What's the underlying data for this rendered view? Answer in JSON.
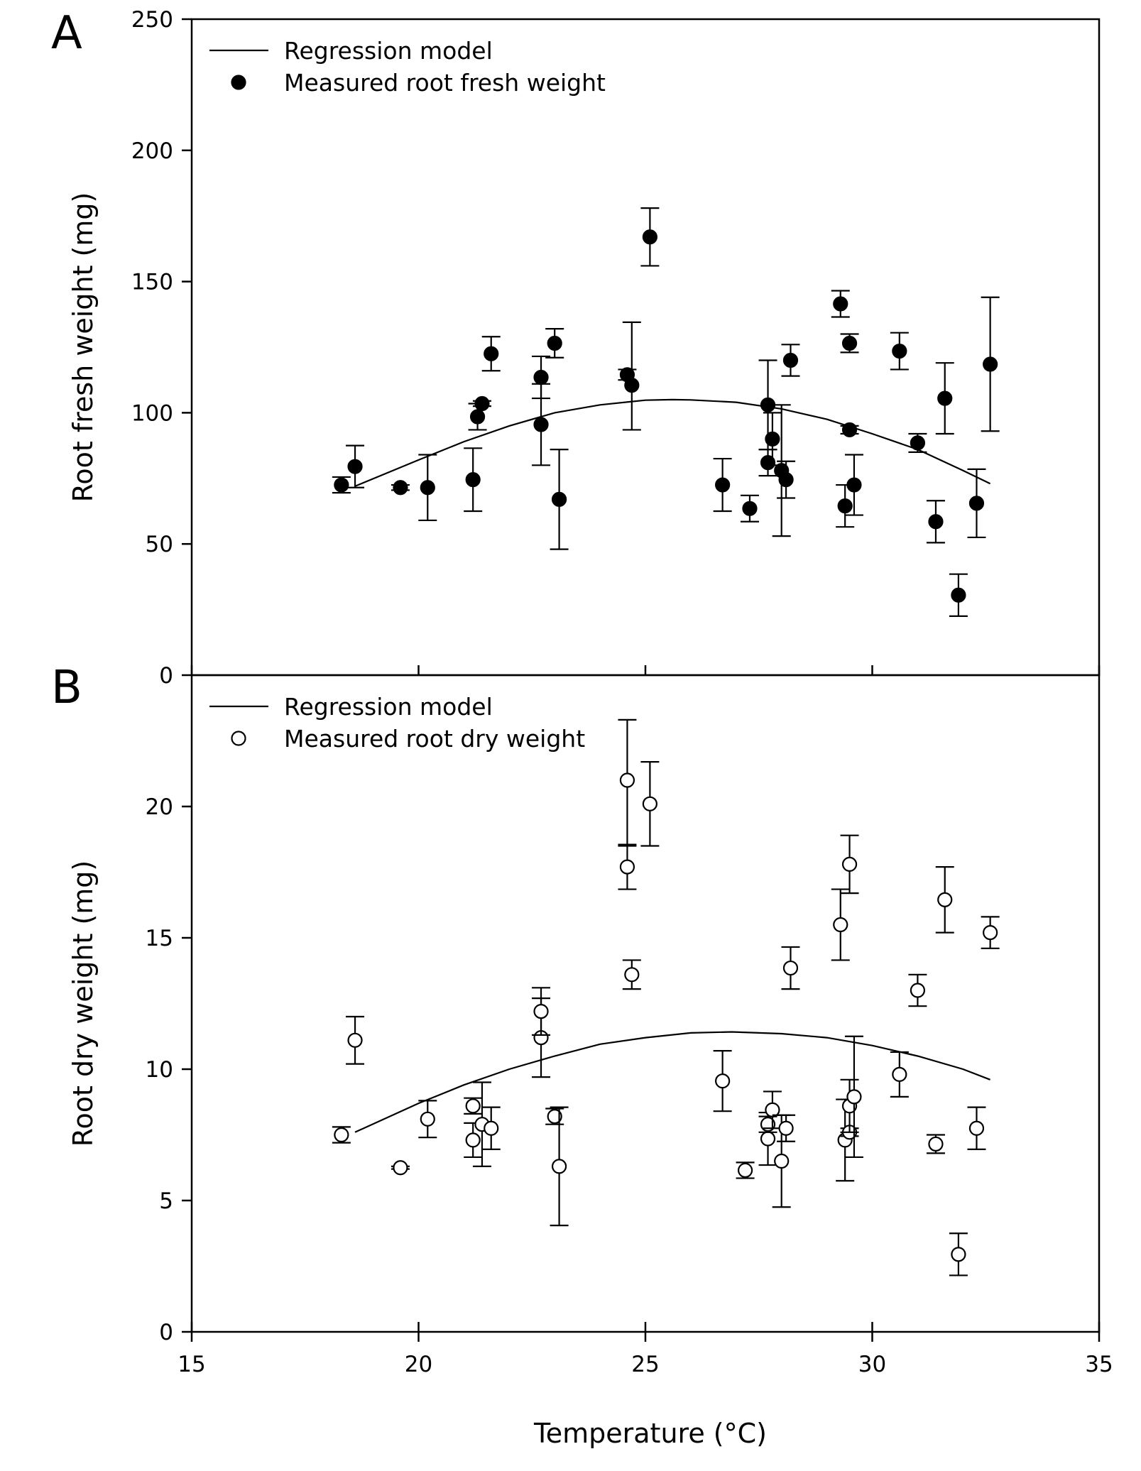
{
  "chart_data": [
    {
      "type": "scatter",
      "panel_label": "A",
      "title": "",
      "xlabel": "Temperature (°C)",
      "ylabel": "Root fresh weight (mg)",
      "xlim": [
        15,
        35
      ],
      "ylim": [
        0,
        250
      ],
      "x_ticks": [
        15,
        20,
        25,
        30,
        35
      ],
      "y_ticks": [
        0,
        50,
        100,
        150,
        200,
        250
      ],
      "grid": false,
      "legend_position": "top-left",
      "legend": [
        {
          "label": "Regression model",
          "marker": "line"
        },
        {
          "label": "Measured root fresh weight",
          "marker": "filled-circle"
        }
      ],
      "regression_model": {
        "x": [
          18.6,
          20,
          21,
          22,
          23,
          24,
          25,
          25.6,
          26,
          27,
          28,
          29,
          30,
          31,
          32,
          32.6
        ],
        "y": [
          72,
          82,
          89,
          95,
          100,
          103,
          104.8,
          105,
          104.9,
          104,
          101.5,
          97.5,
          92,
          86,
          78,
          73
        ]
      },
      "points": [
        {
          "x": 18.3,
          "y": 72.5,
          "err_low": 3,
          "err_high": 3
        },
        {
          "x": 18.6,
          "y": 79.5,
          "err_low": 8,
          "err_high": 8
        },
        {
          "x": 19.6,
          "y": 71.5,
          "err_low": 1,
          "err_high": 1
        },
        {
          "x": 20.2,
          "y": 71.5,
          "err_low": 12.5,
          "err_high": 12.5
        },
        {
          "x": 21.2,
          "y": 74.5,
          "err_low": 12,
          "err_high": 12
        },
        {
          "x": 21.3,
          "y": 98.5,
          "err_low": 5,
          "err_high": 5
        },
        {
          "x": 21.4,
          "y": 103.5,
          "err_low": 1,
          "err_high": 1
        },
        {
          "x": 21.6,
          "y": 122.5,
          "err_low": 6.5,
          "err_high": 6.5
        },
        {
          "x": 22.7,
          "y": 95.5,
          "err_low": 15.5,
          "err_high": 15.5
        },
        {
          "x": 22.7,
          "y": 113.5,
          "err_low": 8,
          "err_high": 8
        },
        {
          "x": 23.0,
          "y": 126.5,
          "err_low": 5.5,
          "err_high": 5.5
        },
        {
          "x": 23.1,
          "y": 67,
          "err_low": 19,
          "err_high": 19
        },
        {
          "x": 24.6,
          "y": 114.5,
          "err_low": 2,
          "err_high": 2
        },
        {
          "x": 24.7,
          "y": 110.5,
          "err_low": 17,
          "err_high": 24
        },
        {
          "x": 25.1,
          "y": 167,
          "err_low": 11,
          "err_high": 11
        },
        {
          "x": 26.7,
          "y": 72.5,
          "err_low": 10,
          "err_high": 10
        },
        {
          "x": 27.3,
          "y": 63.5,
          "err_low": 5,
          "err_high": 5
        },
        {
          "x": 27.7,
          "y": 103,
          "err_low": 17,
          "err_high": 17
        },
        {
          "x": 27.7,
          "y": 81,
          "err_low": 5,
          "err_high": 5
        },
        {
          "x": 27.8,
          "y": 90,
          "err_low": 10,
          "err_high": 10
        },
        {
          "x": 28.0,
          "y": 78,
          "err_low": 25,
          "err_high": 25
        },
        {
          "x": 28.1,
          "y": 74.5,
          "err_low": 7,
          "err_high": 7
        },
        {
          "x": 28.2,
          "y": 120,
          "err_low": 6,
          "err_high": 6
        },
        {
          "x": 29.3,
          "y": 141.5,
          "err_low": 5,
          "err_high": 5
        },
        {
          "x": 29.4,
          "y": 64.5,
          "err_low": 8,
          "err_high": 8
        },
        {
          "x": 29.5,
          "y": 126.5,
          "err_low": 3.5,
          "err_high": 3.5
        },
        {
          "x": 29.5,
          "y": 93.5,
          "err_low": 1.5,
          "err_high": 1.5
        },
        {
          "x": 29.6,
          "y": 72.5,
          "err_low": 11.5,
          "err_high": 11.5
        },
        {
          "x": 30.6,
          "y": 123.5,
          "err_low": 7,
          "err_high": 7
        },
        {
          "x": 31.0,
          "y": 88.5,
          "err_low": 3.5,
          "err_high": 3.5
        },
        {
          "x": 31.4,
          "y": 58.5,
          "err_low": 8,
          "err_high": 8
        },
        {
          "x": 31.6,
          "y": 105.5,
          "err_low": 13.5,
          "err_high": 13.5
        },
        {
          "x": 31.9,
          "y": 30.5,
          "err_low": 8,
          "err_high": 8
        },
        {
          "x": 32.3,
          "y": 65.5,
          "err_low": 13,
          "err_high": 13
        },
        {
          "x": 32.6,
          "y": 118.5,
          "err_low": 25.5,
          "err_high": 25.5
        }
      ]
    },
    {
      "type": "scatter",
      "panel_label": "B",
      "title": "",
      "xlabel": "Temperature (°C)",
      "ylabel": "Root dry weight (mg)",
      "xlim": [
        15,
        35
      ],
      "ylim": [
        0,
        25
      ],
      "x_ticks": [
        15,
        20,
        25,
        30,
        35
      ],
      "y_ticks": [
        0,
        5,
        10,
        15,
        20
      ],
      "grid": false,
      "legend_position": "top-left",
      "legend": [
        {
          "label": "Regression model",
          "marker": "line"
        },
        {
          "label": "Measured root dry weight",
          "marker": "open-circle"
        }
      ],
      "regression_model": {
        "x": [
          18.6,
          20,
          21,
          22,
          23,
          24,
          25,
          26,
          26.9,
          28,
          29,
          30,
          31,
          32,
          32.6
        ],
        "y": [
          7.6,
          8.7,
          9.4,
          10.0,
          10.5,
          10.95,
          11.2,
          11.38,
          11.42,
          11.35,
          11.2,
          10.9,
          10.5,
          10.0,
          9.6
        ]
      },
      "points": [
        {
          "x": 18.3,
          "y": 7.5,
          "err_low": 0.3,
          "err_high": 0.3
        },
        {
          "x": 18.6,
          "y": 11.1,
          "err_low": 0.9,
          "err_high": 0.9
        },
        {
          "x": 19.6,
          "y": 6.25,
          "err_low": 0.05,
          "err_high": 0.05
        },
        {
          "x": 20.2,
          "y": 8.1,
          "err_low": 0.7,
          "err_high": 0.7
        },
        {
          "x": 21.2,
          "y": 7.3,
          "err_low": 0.65,
          "err_high": 0.65
        },
        {
          "x": 21.2,
          "y": 8.6,
          "err_low": 0.3,
          "err_high": 0.3
        },
        {
          "x": 21.4,
          "y": 7.9,
          "err_low": 1.6,
          "err_high": 1.6
        },
        {
          "x": 21.6,
          "y": 7.75,
          "err_low": 0.8,
          "err_high": 0.8
        },
        {
          "x": 22.7,
          "y": 11.2,
          "err_low": 1.5,
          "err_high": 1.5
        },
        {
          "x": 22.7,
          "y": 12.2,
          "err_low": 0.9,
          "err_high": 0.9
        },
        {
          "x": 23.0,
          "y": 8.2,
          "err_low": 0.3,
          "err_high": 0.3
        },
        {
          "x": 23.1,
          "y": 6.3,
          "err_low": 2.25,
          "err_high": 2.25
        },
        {
          "x": 24.6,
          "y": 17.7,
          "err_low": 0.85,
          "err_high": 0.85
        },
        {
          "x": 24.6,
          "y": 21.0,
          "err_low": 2.5,
          "err_high": 2.3
        },
        {
          "x": 24.7,
          "y": 13.6,
          "err_low": 0.55,
          "err_high": 0.55
        },
        {
          "x": 25.1,
          "y": 20.1,
          "err_low": 1.6,
          "err_high": 1.6
        },
        {
          "x": 26.7,
          "y": 9.55,
          "err_low": 1.15,
          "err_high": 1.15
        },
        {
          "x": 27.2,
          "y": 6.15,
          "err_low": 0.3,
          "err_high": 0.3
        },
        {
          "x": 27.7,
          "y": 7.35,
          "err_low": 1.0,
          "err_high": 1.0
        },
        {
          "x": 27.7,
          "y": 7.9,
          "err_low": 0.3,
          "err_high": 0.3
        },
        {
          "x": 27.8,
          "y": 8.45,
          "err_low": 0.7,
          "err_high": 0.7
        },
        {
          "x": 28.0,
          "y": 6.5,
          "err_low": 1.75,
          "err_high": 1.75
        },
        {
          "x": 28.1,
          "y": 7.75,
          "err_low": 0.5,
          "err_high": 0.5
        },
        {
          "x": 28.2,
          "y": 13.85,
          "err_low": 0.8,
          "err_high": 0.8
        },
        {
          "x": 29.3,
          "y": 15.5,
          "err_low": 1.35,
          "err_high": 1.35
        },
        {
          "x": 29.4,
          "y": 7.3,
          "err_low": 1.55,
          "err_high": 1.55
        },
        {
          "x": 29.5,
          "y": 17.8,
          "err_low": 1.1,
          "err_high": 1.1
        },
        {
          "x": 29.5,
          "y": 7.6,
          "err_low": 0.15,
          "err_high": 0.15
        },
        {
          "x": 29.5,
          "y": 8.6,
          "err_low": 1.0,
          "err_high": 1.0
        },
        {
          "x": 29.6,
          "y": 8.95,
          "err_low": 2.3,
          "err_high": 2.3
        },
        {
          "x": 30.6,
          "y": 9.8,
          "err_low": 0.85,
          "err_high": 0.85
        },
        {
          "x": 31.0,
          "y": 13.0,
          "err_low": 0.6,
          "err_high": 0.6
        },
        {
          "x": 31.4,
          "y": 7.15,
          "err_low": 0.35,
          "err_high": 0.35
        },
        {
          "x": 31.6,
          "y": 16.45,
          "err_low": 1.25,
          "err_high": 1.25
        },
        {
          "x": 31.9,
          "y": 2.95,
          "err_low": 0.8,
          "err_high": 0.8
        },
        {
          "x": 32.3,
          "y": 7.75,
          "err_low": 0.8,
          "err_high": 0.8
        },
        {
          "x": 32.6,
          "y": 15.2,
          "err_low": 0.6,
          "err_high": 0.6
        }
      ]
    }
  ]
}
